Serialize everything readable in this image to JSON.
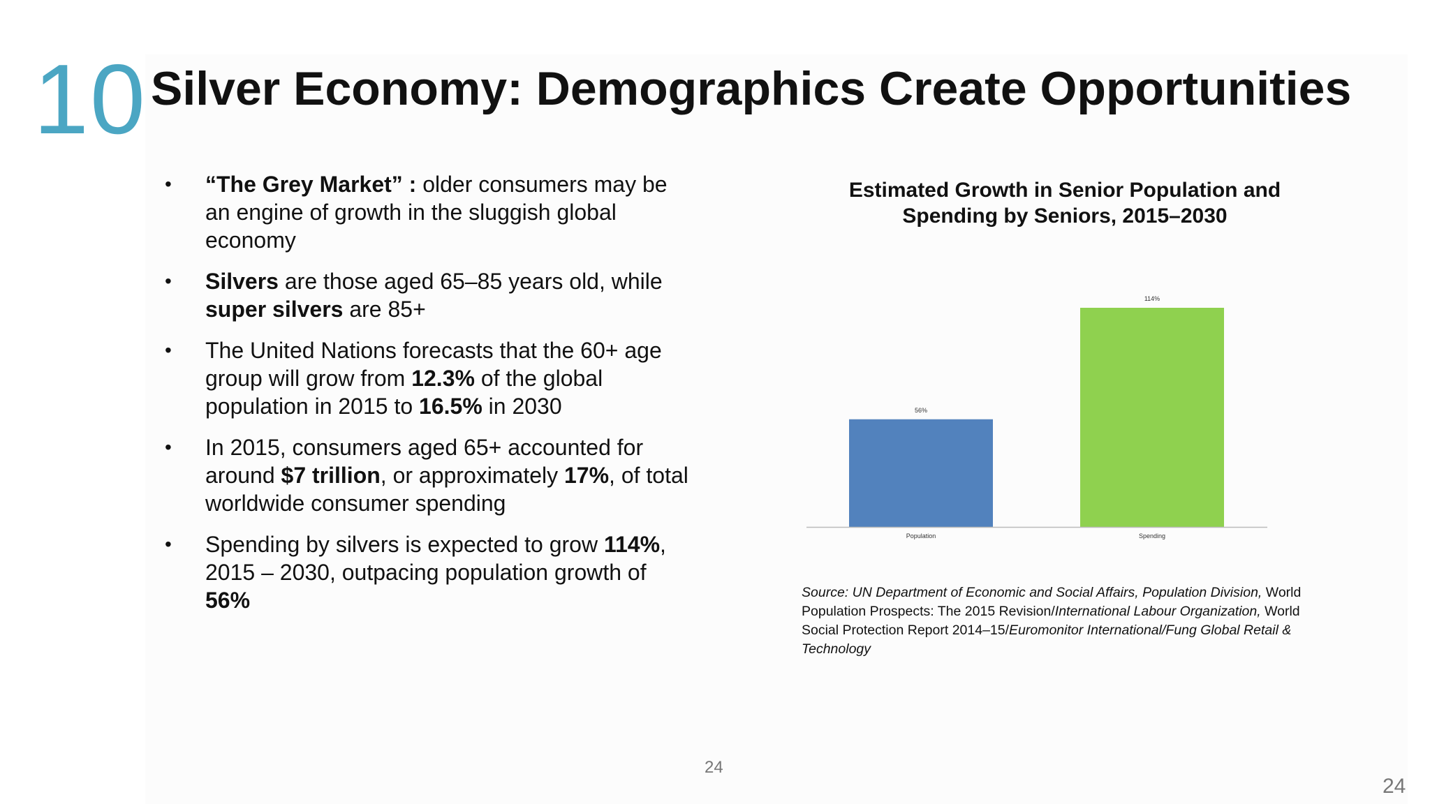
{
  "slide": {
    "section_number": "10",
    "title": "Silver Economy: Demographics Create Opportunities",
    "page_center": "24",
    "page_corner": "24"
  },
  "bullets": [
    [
      {
        "t": "“The Grey Market” : ",
        "b": true
      },
      {
        "t": "older consumers may be an engine of growth in the sluggish global economy",
        "b": false
      }
    ],
    [
      {
        "t": "Silvers",
        "b": true
      },
      {
        "t": " are those aged 65–85 years old, while ",
        "b": false
      },
      {
        "t": "super silvers",
        "b": true
      },
      {
        "t": " are 85+",
        "b": false
      }
    ],
    [
      {
        "t": "The United Nations forecasts that the 60+ age group will grow from ",
        "b": false
      },
      {
        "t": "12.3%",
        "b": true
      },
      {
        "t": " of the global population in 2015 to ",
        "b": false
      },
      {
        "t": "16.5%",
        "b": true
      },
      {
        "t": " in 2030",
        "b": false
      }
    ],
    [
      {
        "t": "In 2015, consumers aged 65+ accounted for around ",
        "b": false
      },
      {
        "t": "$7 trillion",
        "b": true
      },
      {
        "t": ", or approximately ",
        "b": false
      },
      {
        "t": "17%",
        "b": true
      },
      {
        "t": ", of total worldwide consumer spending",
        "b": false
      }
    ],
    [
      {
        "t": "Spending by silvers is expected to grow ",
        "b": false
      },
      {
        "t": "114%",
        "b": true
      },
      {
        "t": ", 2015 – 2030, outpacing population growth of ",
        "b": false
      },
      {
        "t": "56%",
        "b": true
      }
    ]
  ],
  "chart_data": {
    "type": "bar",
    "title_line1": "Estimated Growth in Senior Population and",
    "title_line2": "Spending by Seniors, 2015–2030",
    "categories": [
      "Population",
      "Spending"
    ],
    "values": [
      56,
      114
    ],
    "data_labels": [
      "56%",
      "114%"
    ],
    "colors": [
      "#5282bd",
      "#8fd14f"
    ],
    "ylim": [
      0,
      114
    ],
    "grid": false,
    "legend": "none"
  },
  "source": [
    {
      "t": "Source: UN Department of Economic and Social Affairs, Population Division, ",
      "i": true
    },
    {
      "t": "World Population Prospects: The 2015 Revision/",
      "i": false
    },
    {
      "t": "International Labour Organization, ",
      "i": true
    },
    {
      "t": "World Social Protection Report 2014–15/",
      "i": false
    },
    {
      "t": "Euromonitor International/Fung Global Retail & Technology",
      "i": true
    }
  ]
}
